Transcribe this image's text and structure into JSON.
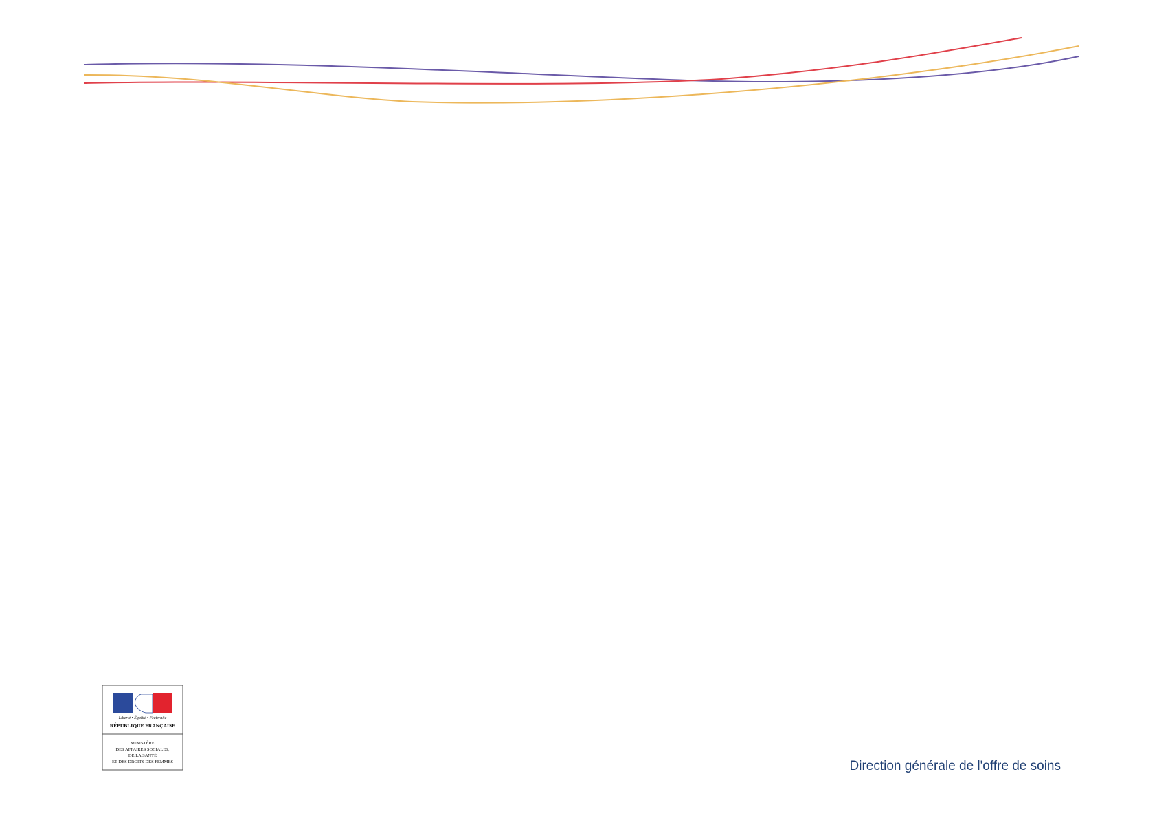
{
  "logo": {
    "motto": "Liberté • Égalité • Fraternité",
    "republic": "RÉPUBLIQUE FRANÇAISE",
    "ministry": [
      "MINISTÈRE",
      "DES AFFAIRES SOCIALES,",
      "DE LA SANTÉ",
      "ET DES DROITS DES FEMMES"
    ]
  },
  "footer": {
    "department": "Direction générale de l'offre de soins"
  }
}
